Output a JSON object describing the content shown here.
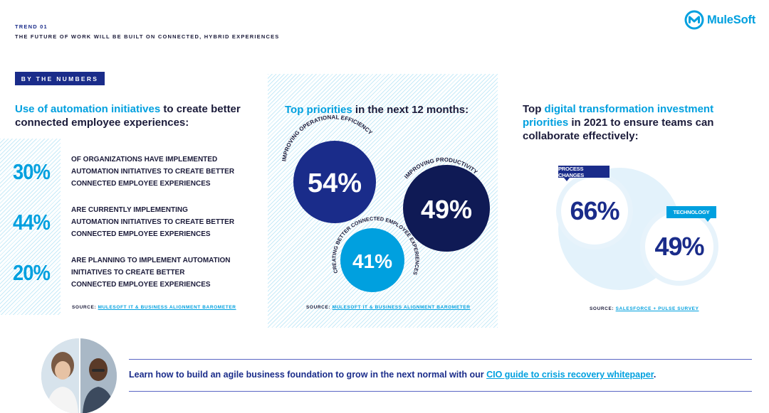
{
  "header": {
    "trend": "TREND 01",
    "subtitle": "THE FUTURE OF WORK WILL BE BUILT ON CONNECTED, HYBRID EXPERIENCES"
  },
  "logo": {
    "text": "MuleSoft",
    "icon": "mulesoft-logo-icon"
  },
  "badge": "BY THE NUMBERS",
  "left": {
    "heading_highlight": "Use of automation initiatives",
    "heading_rest": " to create better connected employee experiences:",
    "stats": [
      {
        "value": "30%",
        "lines": [
          "OF ORGANIZATIONS HAVE IMPLEMENTED",
          "AUTOMATION INITIATIVES TO CREATE BETTER",
          "CONNECTED EMPLOYEE EXPERIENCES"
        ]
      },
      {
        "value": "44%",
        "lines": [
          "ARE CURRENTLY IMPLEMENTING",
          "AUTOMATION INITIATIVES TO CREATE BETTER",
          "CONNECTED EMPLOYEE EXPERIENCES"
        ]
      },
      {
        "value": "20%",
        "lines": [
          "ARE PLANNING TO IMPLEMENT AUTOMATION",
          "INITIATIVES TO CREATE BETTER",
          "CONNECTED EMPLOYEE EXPERIENCES"
        ]
      }
    ],
    "source_label": "SOURCE: ",
    "source_link": "MULESOFT IT & BUSINESS ALIGNMENT BAROMETER"
  },
  "middle": {
    "heading_highlight": "Top priorities",
    "heading_rest": " in the next 12 months:",
    "bubbles": [
      {
        "value": "54%",
        "label": "IMPROVING OPERATIONAL EFFICIENCY",
        "color": "#1a2c8a"
      },
      {
        "value": "49%",
        "label": "IMPROVING PRODUCTIVITY",
        "color": "#0f1a55"
      },
      {
        "value": "41%",
        "label": "CREATING BETTER CONNECTED EMPLOYEE EXPERIENCES",
        "color": "#00a0df"
      }
    ],
    "source_label": "SOURCE: ",
    "source_link": "MULESOFT IT & BUSINESS ALIGNMENT BAROMETER"
  },
  "right": {
    "heading_pre": "Top ",
    "heading_highlight": "digital transformation investment priorities",
    "heading_rest": " in 2021 to ensure teams can collaborate effectively:",
    "items": [
      {
        "tag": "PROCESS CHANGES",
        "value": "66%"
      },
      {
        "tag": "TECHNOLOGY",
        "value": "49%"
      }
    ],
    "source_label": "SOURCE: ",
    "source_link": "SALESFORCE + PULSE SURVEY"
  },
  "cta": {
    "text": "Learn how to build an agile business foundation to grow in the next normal with our ",
    "link": "CIO guide to crisis recovery whitepaper",
    "end": "."
  },
  "colors": {
    "navy": "#1a2c8a",
    "dark_navy": "#0f1a55",
    "cyan": "#00a0df",
    "text": "#1b1b3a"
  }
}
